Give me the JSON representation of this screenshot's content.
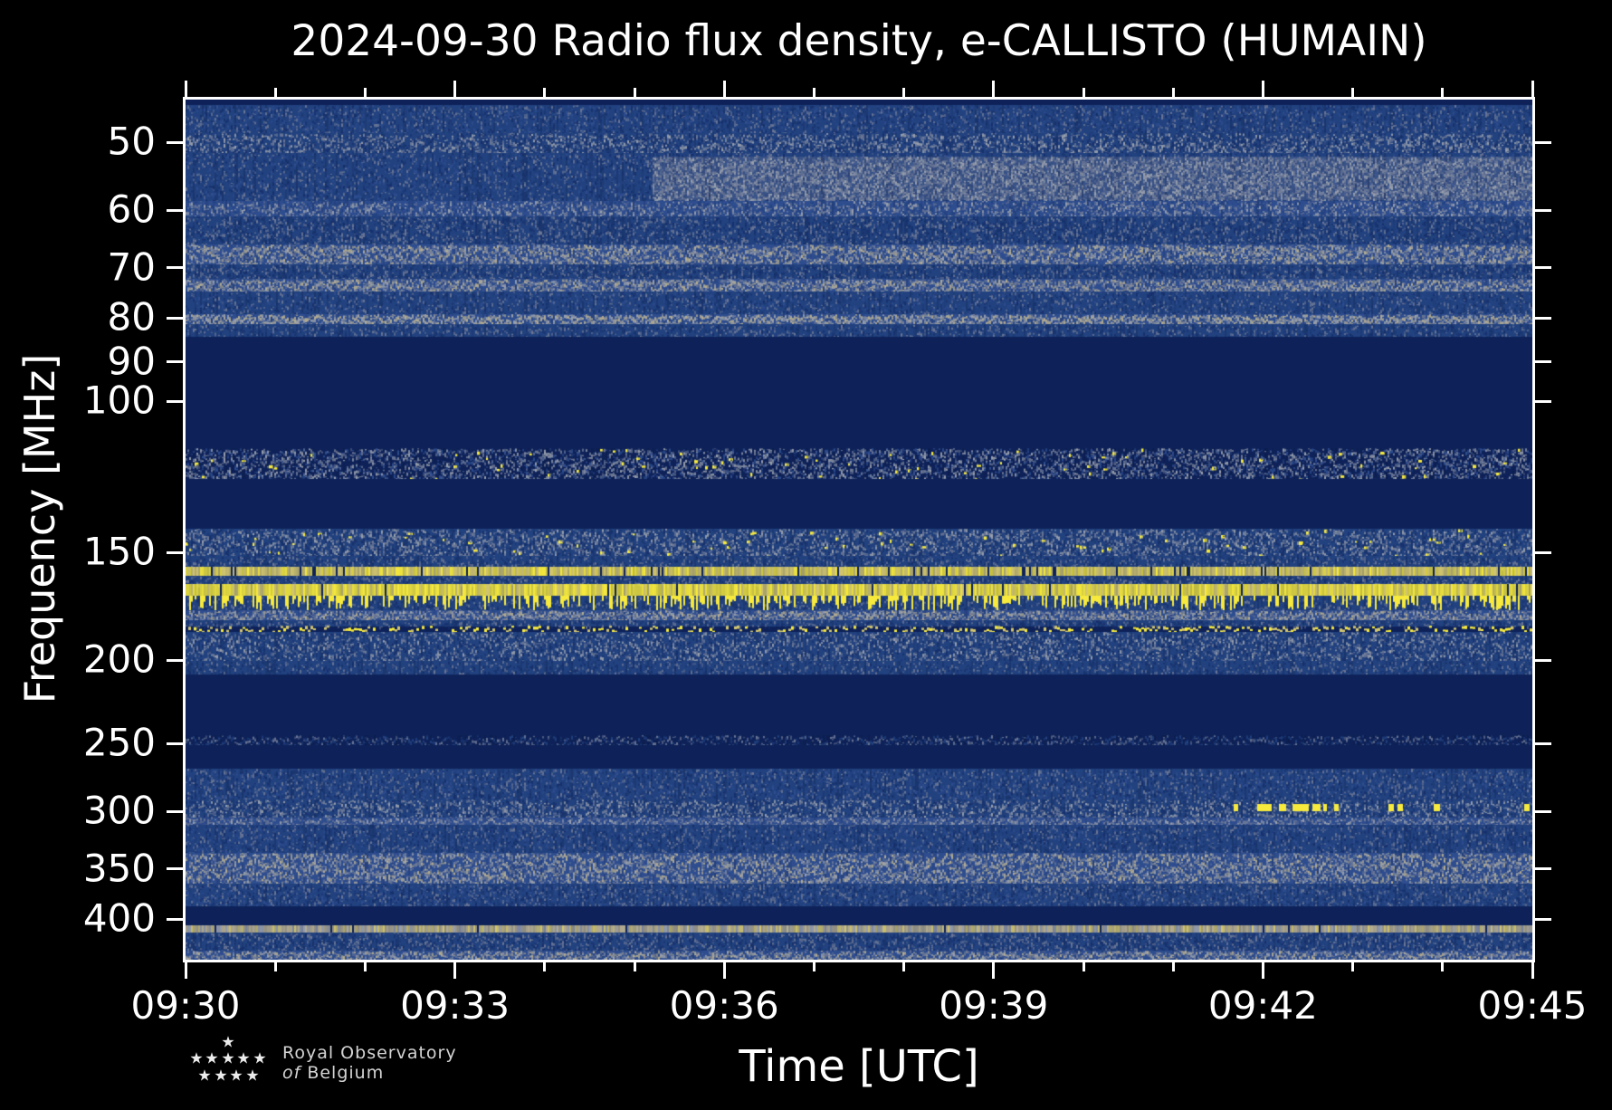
{
  "chart_data": {
    "type": "heatmap",
    "subtype": "radio-spectrogram",
    "title": "2024-09-30 Radio flux density, e-CALLISTO (HUMAIN)",
    "date": "2024-09-30",
    "instrument": "e-CALLISTO",
    "station": "HUMAIN",
    "xlabel": "Time [UTC]",
    "ylabel": "Frequency [MHz]",
    "time_range": [
      "09:30",
      "09:45"
    ],
    "duration_min": 15,
    "x_ticks": [
      {
        "min": 0,
        "label": "09:30"
      },
      {
        "min": 3,
        "label": "09:33"
      },
      {
        "min": 6,
        "label": "09:36"
      },
      {
        "min": 9,
        "label": "09:39"
      },
      {
        "min": 12,
        "label": "09:42"
      },
      {
        "min": 15,
        "label": "09:45"
      }
    ],
    "x_minor_interval_min": 1,
    "y_scale": "log",
    "y_ticks": [
      50,
      60,
      70,
      80,
      90,
      100,
      150,
      200,
      250,
      300,
      350,
      400
    ],
    "freq_range": [
      44.6,
      446.0
    ],
    "legend": "none",
    "grid": "off",
    "colors": {
      "navy": "#0e2259",
      "dkblue": "#16306b",
      "blue": "#21417f",
      "blue2": "#2e4d8f",
      "slate": "#6b7795",
      "gray": "#99a0ad",
      "tan": "#b5ad90",
      "khaki": "#d3c66f",
      "yellow": "#f7ea3d",
      "axis": "#ffffff",
      "background": "#000000"
    },
    "bands": [
      {
        "f": [
          44.6,
          45.3
        ],
        "style": "solid",
        "base": "navy"
      },
      {
        "f": [
          45.3,
          48.8
        ],
        "style": "noise",
        "base": "blue",
        "pal": [
          "slate",
          "dkblue",
          "blue2"
        ],
        "d": 0.8
      },
      {
        "f": [
          48.8,
          51.5
        ],
        "style": "noise",
        "base": "blue",
        "pal": [
          "slate",
          "gray",
          "dkblue"
        ],
        "d": 1.0
      },
      {
        "f": [
          51.5,
          58.6
        ],
        "style": "noise",
        "base": "blue",
        "pal": [
          "dkblue",
          "slate",
          "blue2"
        ],
        "d": 0.7
      },
      {
        "f": [
          52.0,
          58.3
        ],
        "style": "haze",
        "t": [
          5.2,
          15
        ],
        "pal": [
          "slate",
          "gray"
        ],
        "d": 1.1,
        "desc": "diffuse brightening after 09:35"
      },
      {
        "f": [
          58.6,
          61.0
        ],
        "style": "noise",
        "base": "blue2",
        "pal": [
          "slate",
          "gray",
          "blue"
        ],
        "d": 1.1
      },
      {
        "f": [
          61.0,
          65.8
        ],
        "style": "noise",
        "base": "blue",
        "pal": [
          "dkblue",
          "slate"
        ],
        "d": 0.7
      },
      {
        "f": [
          65.8,
          69.4
        ],
        "style": "noise",
        "base": "blue2",
        "pal": [
          "tan",
          "slate",
          "gray"
        ],
        "d": 1.2
      },
      {
        "f": [
          69.4,
          72.2
        ],
        "style": "noise",
        "base": "blue",
        "pal": [
          "dkblue",
          "slate"
        ],
        "d": 0.6
      },
      {
        "f": [
          72.2,
          74.7
        ],
        "style": "noise",
        "base": "blue2",
        "pal": [
          "tan",
          "gray",
          "slate"
        ],
        "d": 1.3,
        "desc": "RFI band ~73 MHz"
      },
      {
        "f": [
          74.7,
          79.3
        ],
        "style": "noise",
        "base": "blue",
        "pal": [
          "dkblue",
          "slate",
          "blue2"
        ],
        "d": 0.6
      },
      {
        "f": [
          79.3,
          81.4
        ],
        "style": "noise",
        "base": "blue2",
        "pal": [
          "tan",
          "gray"
        ],
        "d": 1.4,
        "desc": "RFI band ~80 MHz"
      },
      {
        "f": [
          81.4,
          84.2
        ],
        "style": "noise",
        "base": "blue",
        "pal": [
          "dkblue",
          "slate"
        ],
        "d": 0.5
      },
      {
        "f": [
          84.2,
          113.5
        ],
        "style": "solid",
        "base": "navy",
        "desc": "quiet zone 85-113 MHz"
      },
      {
        "f": [
          113.5,
          123.3
        ],
        "style": "noise",
        "base": "navy",
        "pal": [
          "slate",
          "blue2",
          "gray"
        ],
        "d": 0.9,
        "dots": {
          "d": 0.12,
          "color": "yellow"
        },
        "desc": "airband speckle with yellow bursts"
      },
      {
        "f": [
          123.3,
          141.0
        ],
        "style": "solid",
        "base": "navy"
      },
      {
        "f": [
          141.0,
          151.4
        ],
        "style": "noise",
        "base": "blue",
        "pal": [
          "slate",
          "gray",
          "dkblue"
        ],
        "d": 1.0,
        "dots": {
          "d": 0.1,
          "color": "yellow"
        },
        "desc": "~145 MHz band"
      },
      {
        "f": [
          151.4,
          155.8
        ],
        "style": "noise",
        "base": "blue",
        "pal": [
          "dkblue",
          "slate"
        ],
        "d": 0.6
      },
      {
        "f": [
          155.8,
          159.6
        ],
        "style": "line",
        "pal": [
          "khaki",
          "khaki",
          "yellow"
        ],
        "gap": 0.06,
        "desc": "continuous RFI line ~157 MHz"
      },
      {
        "f": [
          159.6,
          163.5
        ],
        "style": "noise",
        "base": "blue",
        "pal": [
          "dkblue",
          "slate"
        ],
        "d": 0.6
      },
      {
        "f": [
          163.5,
          168.6
        ],
        "style": "line",
        "pal": [
          "yellow",
          "yellow",
          "yellow",
          "khaki"
        ],
        "gap": 0.03,
        "desc": "strong saturated RFI line ~165 MHz"
      },
      {
        "f": [
          168.6,
          175.0
        ],
        "style": "streaks",
        "base": "blue",
        "pal": [
          "slate",
          "dkblue"
        ],
        "d": 0.5,
        "sd": 0.5,
        "streak": "yellow",
        "desc": "yellow streaks hanging below 165 MHz line"
      },
      {
        "f": [
          175.0,
          180.0
        ],
        "style": "noise",
        "base": "blue2",
        "pal": [
          "tan",
          "gray",
          "slate"
        ],
        "d": 1.2
      },
      {
        "f": [
          180.0,
          182.5
        ],
        "style": "noise",
        "base": "blue",
        "pal": [
          "dkblue",
          "slate"
        ],
        "d": 0.5
      },
      {
        "f": [
          182.5,
          185.5
        ],
        "style": "dashline",
        "pal": [
          "yellow",
          "khaki"
        ],
        "d": 0.55,
        "desc": "broken RFI line ~184 MHz"
      },
      {
        "f": [
          185.5,
          200.8
        ],
        "style": "noise",
        "base": "blue",
        "pal": [
          "slate",
          "gray",
          "dkblue"
        ],
        "d": 0.9
      },
      {
        "f": [
          200.8,
          208.3
        ],
        "style": "noise",
        "base": "blue",
        "pal": [
          "dkblue",
          "slate"
        ],
        "d": 0.6
      },
      {
        "f": [
          208.3,
          244.9
        ],
        "style": "solid",
        "base": "navy"
      },
      {
        "f": [
          244.9,
          251.7
        ],
        "style": "noise",
        "base": "navy",
        "pal": [
          "slate",
          "blue"
        ],
        "d": 0.5,
        "desc": "faint band ~250 MHz"
      },
      {
        "f": [
          251.7,
          267.6
        ],
        "style": "solid",
        "base": "navy"
      },
      {
        "f": [
          267.6,
          290.5
        ],
        "style": "noise",
        "base": "blue",
        "pal": [
          "dkblue",
          "slate",
          "blue2"
        ],
        "d": 0.8
      },
      {
        "f": [
          290.5,
          305.0
        ],
        "style": "noise",
        "base": "blue",
        "pal": [
          "slate",
          "gray",
          "dkblue"
        ],
        "d": 1.0
      },
      {
        "f": [
          305.0,
          311.5
        ],
        "style": "noise",
        "base": "blue2",
        "pal": [
          "slate",
          "gray"
        ],
        "d": 0.9
      },
      {
        "f": [
          311.5,
          335.6
        ],
        "style": "noise",
        "base": "blue",
        "pal": [
          "dkblue",
          "blue2",
          "slate"
        ],
        "d": 0.8
      },
      {
        "f": [
          335.6,
          364.0
        ],
        "style": "noise",
        "base": "blue2",
        "pal": [
          "slate",
          "gray",
          "tan"
        ],
        "d": 1.0,
        "desc": "brighter band around 350 MHz"
      },
      {
        "f": [
          364.0,
          387.2
        ],
        "style": "noise",
        "base": "blue",
        "pal": [
          "dkblue",
          "slate",
          "blue2"
        ],
        "d": 0.9
      },
      {
        "f": [
          387.2,
          406.9
        ],
        "style": "solid",
        "base": "navy"
      },
      {
        "f": [
          406.9,
          415.6
        ],
        "style": "line",
        "pal": [
          "tan",
          "tan",
          "gray",
          "khaki"
        ],
        "gap": 0.02,
        "desc": "continuous light line ~410 MHz"
      },
      {
        "f": [
          415.6,
          435.5
        ],
        "style": "noise",
        "base": "blue",
        "pal": [
          "dkblue",
          "slate"
        ],
        "d": 0.7
      },
      {
        "f": [
          435.5,
          446.0
        ],
        "style": "noise",
        "base": "blue2",
        "pal": [
          "tan",
          "slate",
          "gray"
        ],
        "d": 1.1
      }
    ],
    "features": {
      "bursts": {
        "freq": 297,
        "desc": "bright yellow point bursts near 300 MHz between 09:41:40 and 09:44:55",
        "segments": [
          [
            0.778,
            5
          ],
          [
            0.796,
            16
          ],
          [
            0.812,
            8
          ],
          [
            0.822,
            18
          ],
          [
            0.837,
            9
          ],
          [
            0.845,
            4
          ],
          [
            0.853,
            5
          ],
          [
            0.893,
            6
          ],
          [
            0.9,
            6
          ],
          [
            0.927,
            7
          ],
          [
            0.994,
            6
          ]
        ]
      }
    }
  },
  "logo": {
    "line1": "Royal Observatory",
    "line2_italic": "of",
    "line2_rest": "Belgium",
    "stars": [
      [
        252,
        1152
      ],
      [
        217,
        1170
      ],
      [
        234,
        1170
      ],
      [
        252,
        1170
      ],
      [
        269,
        1170
      ],
      [
        287,
        1170
      ],
      [
        226,
        1189
      ],
      [
        244,
        1189
      ],
      [
        261,
        1189
      ],
      [
        279,
        1189
      ]
    ]
  }
}
